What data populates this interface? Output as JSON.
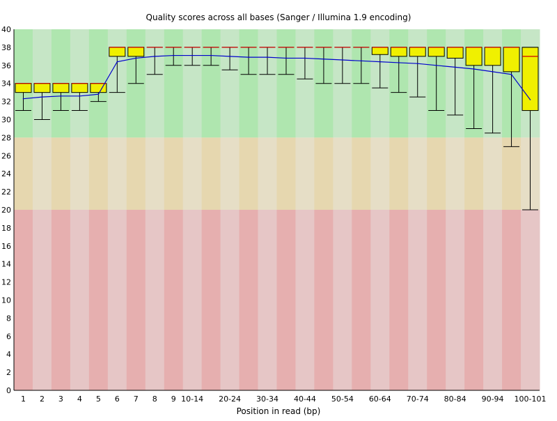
{
  "chart_data": {
    "type": "box",
    "title": "Quality scores across all bases (Sanger / Illumina 1.9 encoding)",
    "xlabel": "Position in read (bp)",
    "ylabel": "",
    "ylim": [
      0,
      40
    ],
    "yticks": [
      0,
      2,
      4,
      6,
      8,
      10,
      12,
      14,
      16,
      18,
      20,
      22,
      24,
      26,
      28,
      30,
      32,
      34,
      36,
      38,
      40
    ],
    "grid": false,
    "bands": [
      {
        "from": 28,
        "to": 40,
        "color_a": "#afe6af",
        "color_b": "#c6e6c6"
      },
      {
        "from": 20,
        "to": 28,
        "color_a": "#e6d7af",
        "color_b": "#e6dec6"
      },
      {
        "from": 0,
        "to": 20,
        "color_a": "#e6afaf",
        "color_b": "#e6c6c6"
      }
    ],
    "colors": {
      "box": "#f0f000",
      "median": "#cc0000",
      "mean_line": "#0000cc",
      "whisker": "#000000"
    },
    "categories": [
      "1",
      "2",
      "3",
      "4",
      "5",
      "6",
      "7",
      "8",
      "9",
      "10-14",
      "15-19",
      "20-24",
      "25-29",
      "30-34",
      "35-39",
      "40-44",
      "45-49",
      "50-54",
      "55-59",
      "60-64",
      "65-69",
      "70-74",
      "75-79",
      "80-84",
      "85-89",
      "90-94",
      "95-99",
      "100-101"
    ],
    "x_tick_labels": [
      "1",
      "2",
      "3",
      "4",
      "5",
      "6",
      "7",
      "8",
      "9",
      "10-14",
      "",
      "20-24",
      "",
      "30-34",
      "",
      "40-44",
      "",
      "50-54",
      "",
      "60-64",
      "",
      "70-74",
      "",
      "80-84",
      "",
      "90-94",
      "",
      "100-101"
    ],
    "boxes": [
      {
        "low": 31,
        "q1": 33,
        "median": 34,
        "q3": 34,
        "high": 34
      },
      {
        "low": 30,
        "q1": 33,
        "median": 34,
        "q3": 34,
        "high": 34
      },
      {
        "low": 31,
        "q1": 33,
        "median": 34,
        "q3": 34,
        "high": 34
      },
      {
        "low": 31,
        "q1": 33,
        "median": 34,
        "q3": 34,
        "high": 34
      },
      {
        "low": 32,
        "q1": 33,
        "median": 34,
        "q3": 34,
        "high": 34
      },
      {
        "low": 33,
        "q1": 37,
        "median": 38,
        "q3": 38,
        "high": 38
      },
      {
        "low": 34,
        "q1": 37,
        "median": 38,
        "q3": 38,
        "high": 38
      },
      {
        "low": 35,
        "q1": 38,
        "median": 38,
        "q3": 38,
        "high": 38
      },
      {
        "low": 36,
        "q1": 38,
        "median": 38,
        "q3": 38,
        "high": 38
      },
      {
        "low": 36,
        "q1": 38,
        "median": 38,
        "q3": 38,
        "high": 38
      },
      {
        "low": 36,
        "q1": 38,
        "median": 38,
        "q3": 38,
        "high": 38
      },
      {
        "low": 35.5,
        "q1": 38,
        "median": 38,
        "q3": 38,
        "high": 38
      },
      {
        "low": 35,
        "q1": 38,
        "median": 38,
        "q3": 38,
        "high": 38
      },
      {
        "low": 35,
        "q1": 38,
        "median": 38,
        "q3": 38,
        "high": 38
      },
      {
        "low": 35,
        "q1": 38,
        "median": 38,
        "q3": 38,
        "high": 38
      },
      {
        "low": 34.5,
        "q1": 38,
        "median": 38,
        "q3": 38,
        "high": 38
      },
      {
        "low": 34,
        "q1": 38,
        "median": 38,
        "q3": 38,
        "high": 38
      },
      {
        "low": 34,
        "q1": 38,
        "median": 38,
        "q3": 38,
        "high": 38
      },
      {
        "low": 34,
        "q1": 38,
        "median": 38,
        "q3": 38,
        "high": 38
      },
      {
        "low": 33.5,
        "q1": 37.2,
        "median": 38,
        "q3": 38,
        "high": 38
      },
      {
        "low": 33,
        "q1": 37,
        "median": 38,
        "q3": 38,
        "high": 38
      },
      {
        "low": 32.5,
        "q1": 37,
        "median": 38,
        "q3": 38,
        "high": 38
      },
      {
        "low": 31,
        "q1": 37,
        "median": 38,
        "q3": 38,
        "high": 38
      },
      {
        "low": 30.5,
        "q1": 36.8,
        "median": 38,
        "q3": 38,
        "high": 38
      },
      {
        "low": 29,
        "q1": 36,
        "median": 38,
        "q3": 38,
        "high": 38
      },
      {
        "low": 28.5,
        "q1": 36,
        "median": 38,
        "q3": 38,
        "high": 38
      },
      {
        "low": 27,
        "q1": 35.3,
        "median": 38,
        "q3": 38,
        "high": 38
      },
      {
        "low": 20,
        "q1": 31,
        "median": 37,
        "q3": 38,
        "high": 38
      }
    ],
    "mean": [
      32.3,
      32.5,
      32.6,
      32.6,
      32.8,
      36.4,
      36.8,
      37.0,
      37.1,
      37.1,
      37.1,
      37.0,
      36.9,
      36.9,
      36.8,
      36.8,
      36.7,
      36.6,
      36.5,
      36.4,
      36.3,
      36.2,
      36.0,
      35.8,
      35.6,
      35.3,
      35.0,
      32.2
    ]
  }
}
